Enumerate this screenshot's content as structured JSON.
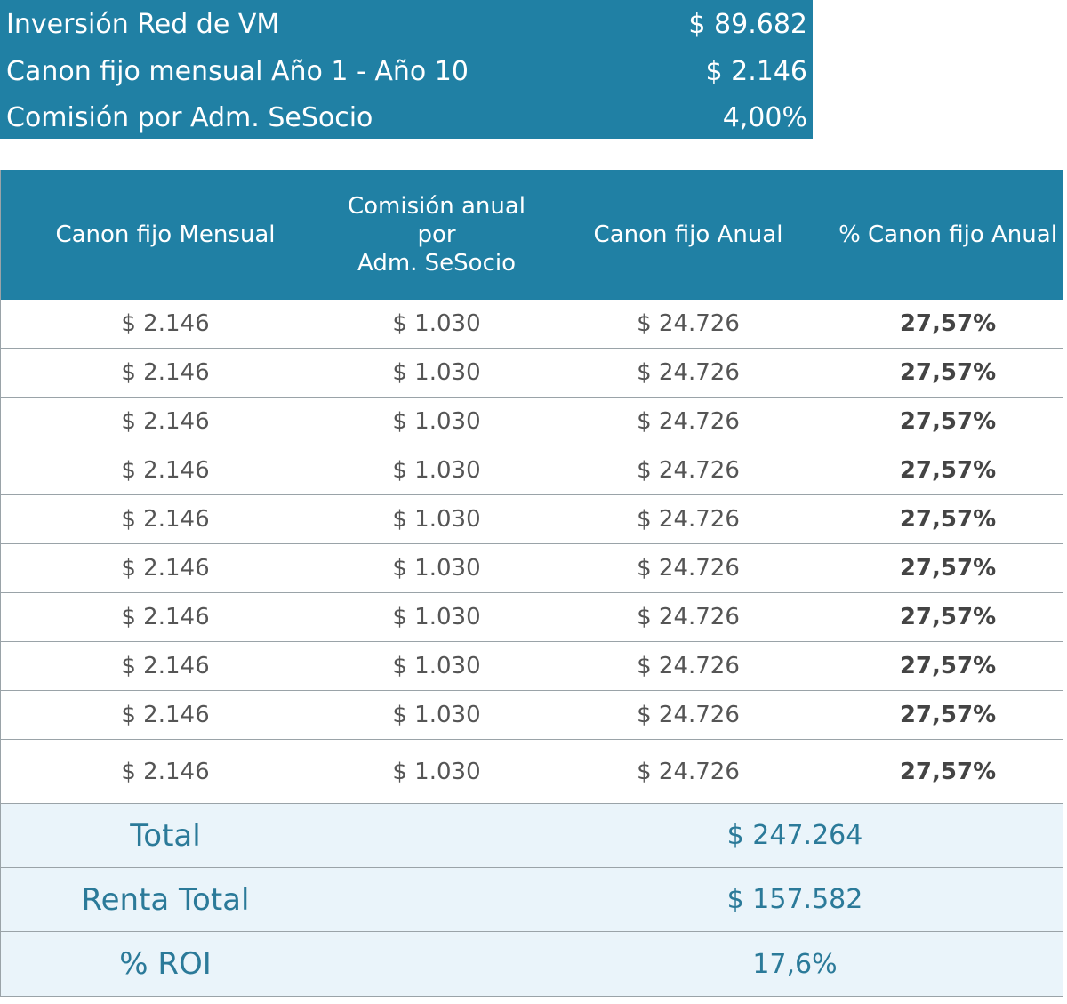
{
  "summary": {
    "rows": [
      {
        "label": "Inversión Red de VM",
        "value": "$ 89.682"
      },
      {
        "label": "Canon fijo mensual Año 1 - Año 10",
        "value": "$ 2.146"
      },
      {
        "label": "Comisión por Adm. SeSocio",
        "value": "4,00%"
      }
    ]
  },
  "table": {
    "headers": {
      "col1": "Canon fijo Mensual",
      "col2_line1": "Comisión anual por",
      "col2_line2": "Adm. SeSocio",
      "col3": "Canon fijo Anual",
      "col4": "% Canon fijo Anual"
    },
    "rows": [
      [
        "$ 2.146",
        "$ 1.030",
        "$ 24.726",
        "27,57%"
      ],
      [
        "$ 2.146",
        "$ 1.030",
        "$ 24.726",
        "27,57%"
      ],
      [
        "$ 2.146",
        "$ 1.030",
        "$ 24.726",
        "27,57%"
      ],
      [
        "$ 2.146",
        "$ 1.030",
        "$ 24.726",
        "27,57%"
      ],
      [
        "$ 2.146",
        "$ 1.030",
        "$ 24.726",
        "27,57%"
      ],
      [
        "$ 2.146",
        "$ 1.030",
        "$ 24.726",
        "27,57%"
      ],
      [
        "$ 2.146",
        "$ 1.030",
        "$ 24.726",
        "27,57%"
      ],
      [
        "$ 2.146",
        "$ 1.030",
        "$ 24.726",
        "27,57%"
      ],
      [
        "$ 2.146",
        "$ 1.030",
        "$ 24.726",
        "27,57%"
      ],
      [
        "$ 2.146",
        "$ 1.030",
        "$ 24.726",
        "27,57%"
      ]
    ],
    "footer": [
      {
        "label": "Total",
        "value": "$ 247.264"
      },
      {
        "label": "Renta Total",
        "value": "$ 157.582"
      },
      {
        "label": "% ROI",
        "value": "17,6%"
      }
    ]
  },
  "colors": {
    "header_bg": "#2080a4",
    "footer_bg": "#eaf4fa",
    "footer_text": "#2b7a99"
  }
}
